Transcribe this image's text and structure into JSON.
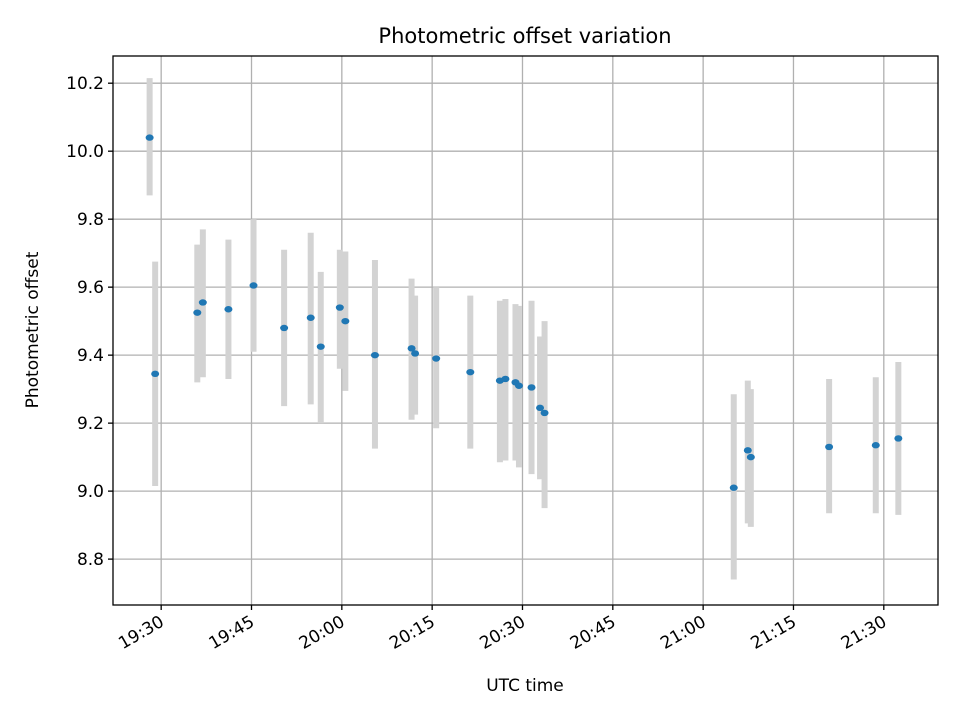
{
  "chart_data": {
    "type": "scatter",
    "title": "Photometric offset variation",
    "xlabel": "UTC time",
    "ylabel": "Photometric offset",
    "x_axis": "time",
    "xlim": [
      "19:22:00",
      "21:39:00"
    ],
    "ylim": [
      8.665,
      10.28
    ],
    "x_ticks": [
      "19:30",
      "19:45",
      "20:00",
      "20:15",
      "20:30",
      "20:45",
      "21:00",
      "21:15",
      "21:30"
    ],
    "y_ticks": [
      "8.8",
      "9.0",
      "9.2",
      "9.4",
      "9.6",
      "9.8",
      "10.0",
      "10.2"
    ],
    "grid": true,
    "x_tick_rotation_deg": 30,
    "marker_color": "#1f77b4",
    "errorbar_color": "#d3d3d3",
    "points": [
      {
        "t": "19:28:05",
        "y": 10.04,
        "lo": 9.87,
        "hi": 10.215
      },
      {
        "t": "19:29:00",
        "y": 9.345,
        "lo": 9.015,
        "hi": 9.675
      },
      {
        "t": "19:36:00",
        "y": 9.525,
        "lo": 9.32,
        "hi": 9.725
      },
      {
        "t": "19:36:55",
        "y": 9.555,
        "lo": 9.335,
        "hi": 9.77
      },
      {
        "t": "19:41:10",
        "y": 9.535,
        "lo": 9.33,
        "hi": 9.74
      },
      {
        "t": "19:45:20",
        "y": 9.605,
        "lo": 9.41,
        "hi": 9.8
      },
      {
        "t": "19:50:25",
        "y": 9.48,
        "lo": 9.25,
        "hi": 9.71
      },
      {
        "t": "19:54:50",
        "y": 9.51,
        "lo": 9.255,
        "hi": 9.76
      },
      {
        "t": "19:56:30",
        "y": 9.425,
        "lo": 9.2,
        "hi": 9.645
      },
      {
        "t": "19:59:40",
        "y": 9.54,
        "lo": 9.36,
        "hi": 9.71
      },
      {
        "t": "20:00:35",
        "y": 9.5,
        "lo": 9.295,
        "hi": 9.705
      },
      {
        "t": "20:05:30",
        "y": 9.4,
        "lo": 9.125,
        "hi": 9.68
      },
      {
        "t": "20:11:35",
        "y": 9.42,
        "lo": 9.21,
        "hi": 9.625
      },
      {
        "t": "20:12:10",
        "y": 9.405,
        "lo": 9.225,
        "hi": 9.575
      },
      {
        "t": "20:15:40",
        "y": 9.39,
        "lo": 9.185,
        "hi": 9.6
      },
      {
        "t": "20:21:20",
        "y": 9.35,
        "lo": 9.125,
        "hi": 9.575
      },
      {
        "t": "20:26:15",
        "y": 9.325,
        "lo": 9.085,
        "hi": 9.56
      },
      {
        "t": "20:27:10",
        "y": 9.33,
        "lo": 9.09,
        "hi": 9.565
      },
      {
        "t": "20:28:50",
        "y": 9.32,
        "lo": 9.09,
        "hi": 9.55
      },
      {
        "t": "20:29:25",
        "y": 9.31,
        "lo": 9.07,
        "hi": 9.545
      },
      {
        "t": "20:31:30",
        "y": 9.305,
        "lo": 9.05,
        "hi": 9.56
      },
      {
        "t": "20:32:55",
        "y": 9.245,
        "lo": 9.035,
        "hi": 9.455
      },
      {
        "t": "20:33:40",
        "y": 9.23,
        "lo": 8.95,
        "hi": 9.5
      },
      {
        "t": "21:05:05",
        "y": 9.01,
        "lo": 8.74,
        "hi": 9.285
      },
      {
        "t": "21:07:25",
        "y": 9.12,
        "lo": 8.905,
        "hi": 9.325
      },
      {
        "t": "21:07:55",
        "y": 9.1,
        "lo": 8.895,
        "hi": 9.3
      },
      {
        "t": "21:20:55",
        "y": 9.13,
        "lo": 8.935,
        "hi": 9.33
      },
      {
        "t": "21:28:40",
        "y": 9.135,
        "lo": 8.935,
        "hi": 9.335
      },
      {
        "t": "21:32:25",
        "y": 9.155,
        "lo": 8.93,
        "hi": 9.38
      }
    ]
  }
}
